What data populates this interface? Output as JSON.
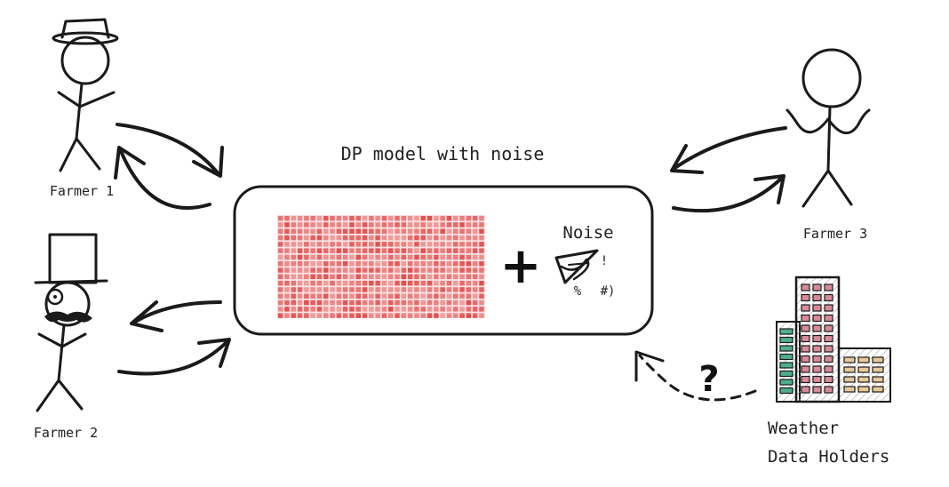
{
  "model": {
    "title": "DP model with noise",
    "noise_label": "Noise",
    "plus": "+",
    "grid_color": "#e84a4a"
  },
  "noise_glyphs": [
    "%",
    "#)",
    "!"
  ],
  "actors": {
    "farmer1": "Farmer 1",
    "farmer2": "Farmer 2",
    "farmer3": "Farmer 3",
    "weather": [
      "Weather",
      "Data Holders"
    ]
  },
  "question": "?"
}
